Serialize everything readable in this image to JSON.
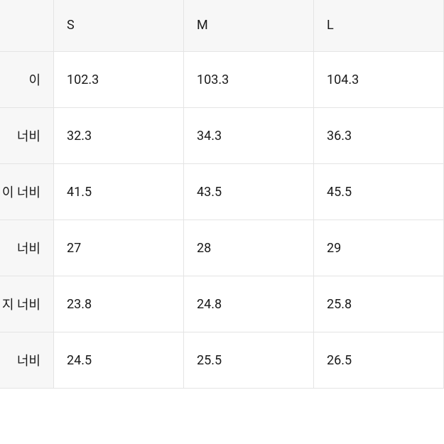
{
  "table": {
    "type": "table",
    "background_color": "#ffffff",
    "header_bg": "#f7f7f7",
    "border_color": "#e4e4e4",
    "text_color": "#1a1a1a",
    "font_size": 18,
    "columns": {
      "blank": "",
      "s": "S",
      "m": "M",
      "l": "L"
    },
    "rows": [
      {
        "label": "이",
        "s": "102.3",
        "m": "103.3",
        "l": "104.3"
      },
      {
        "label": "너비",
        "s": "32.3",
        "m": "34.3",
        "l": "36.3"
      },
      {
        "label": "이 너비",
        "s": "41.5",
        "m": "43.5",
        "l": "45.5"
      },
      {
        "label": "너비",
        "s": "27",
        "m": "28",
        "l": "29"
      },
      {
        "label": "지 너비",
        "s": "23.8",
        "m": "24.8",
        "l": "25.8"
      },
      {
        "label": "너비",
        "s": "24.5",
        "m": "25.5",
        "l": "26.5"
      }
    ]
  }
}
